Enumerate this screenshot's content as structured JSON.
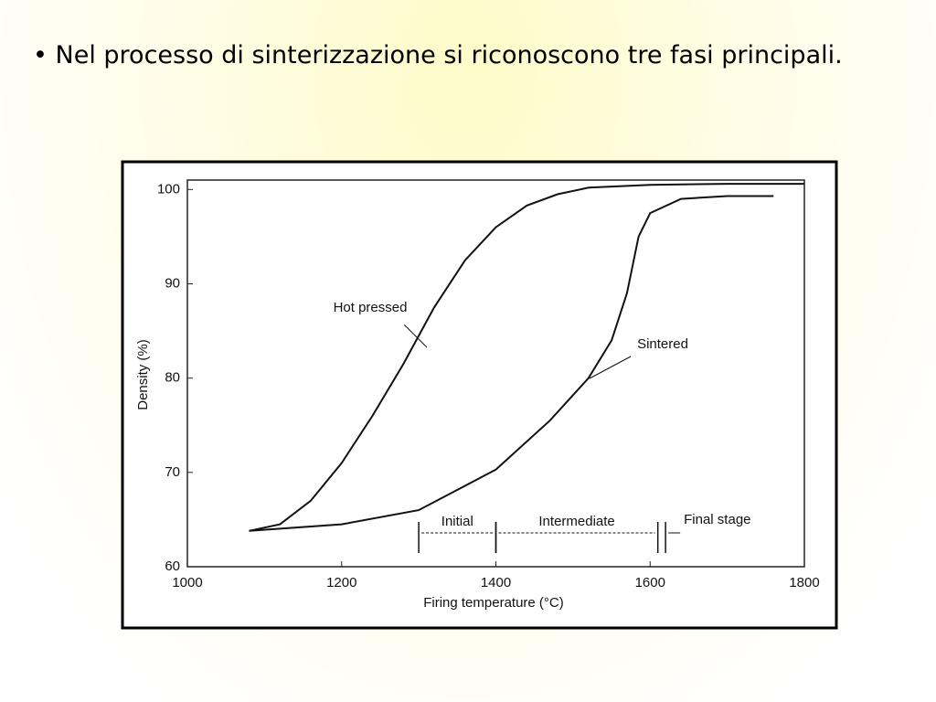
{
  "text": "• Nel processo di sinterizzazione si riconoscono tre fasi principali.",
  "chart_data": {
    "type": "line",
    "xlabel": "Firing temperature (°C)",
    "ylabel": "Density (%)",
    "xlim": [
      1000,
      1800
    ],
    "ylim": [
      60,
      101
    ],
    "xticks": [
      1000,
      1200,
      1400,
      1600,
      1800
    ],
    "yticks": [
      60,
      70,
      80,
      90,
      100
    ],
    "series": [
      {
        "name": "Hot pressed",
        "color": "#111111",
        "x": [
          1080,
          1120,
          1160,
          1200,
          1240,
          1280,
          1320,
          1360,
          1400,
          1440,
          1480,
          1520,
          1600,
          1700,
          1800
        ],
        "values": [
          63.8,
          64.5,
          67,
          71,
          76,
          81.5,
          87.5,
          92.5,
          96,
          98.3,
          99.5,
          100.2,
          100.5,
          100.6,
          100.6
        ]
      },
      {
        "name": "Sintered",
        "color": "#111111",
        "x": [
          1080,
          1200,
          1300,
          1400,
          1470,
          1520,
          1550,
          1570,
          1585,
          1600,
          1640,
          1700,
          1760
        ],
        "values": [
          63.8,
          64.5,
          66,
          70.3,
          75.5,
          80,
          84,
          89,
          95,
          97.5,
          99,
          99.3,
          99.3
        ]
      }
    ],
    "stages": [
      {
        "label": "Initial",
        "start": 1300,
        "end": 1400
      },
      {
        "label": "Intermediate",
        "start": 1400,
        "end": 1610
      },
      {
        "label": "Final stage",
        "start": 1620
      }
    ]
  }
}
